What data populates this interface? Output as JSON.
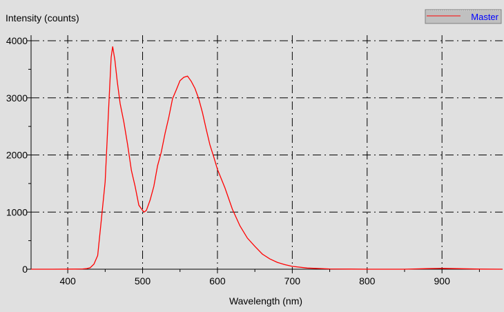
{
  "chart_data": {
    "type": "line",
    "title": "",
    "xlabel": "Wavelength (nm)",
    "ylabel": "Intensity (counts)",
    "xlim": [
      351,
      981
    ],
    "ylim": [
      0,
      4000
    ],
    "xticks": [
      400,
      500,
      600,
      700,
      800,
      900
    ],
    "yticks": [
      0,
      1000,
      2000,
      3000,
      4000
    ],
    "grid": true,
    "legend": {
      "placement": "top-right",
      "entries": [
        "Master"
      ]
    },
    "series": [
      {
        "name": "Master",
        "color": "#ff0000",
        "x": [
          351,
          380,
          410,
          420,
          425,
          430,
          435,
          440,
          445,
          450,
          455,
          458,
          460,
          463,
          466,
          470,
          475,
          480,
          485,
          490,
          495,
          500,
          502,
          505,
          510,
          515,
          520,
          525,
          530,
          535,
          540,
          545,
          550,
          555,
          560,
          565,
          570,
          575,
          580,
          585,
          590,
          595,
          600,
          610,
          620,
          630,
          640,
          650,
          660,
          670,
          680,
          690,
          700,
          720,
          750,
          800,
          850,
          880,
          900,
          920,
          950,
          981
        ],
        "y": [
          0,
          0,
          2,
          5,
          10,
          25,
          90,
          240,
          880,
          1530,
          2900,
          3710,
          3900,
          3660,
          3300,
          2900,
          2575,
          2175,
          1730,
          1450,
          1120,
          1030,
          1000,
          1030,
          1210,
          1450,
          1810,
          2050,
          2380,
          2660,
          2985,
          3140,
          3300,
          3360,
          3380,
          3290,
          3165,
          2985,
          2740,
          2450,
          2175,
          1970,
          1750,
          1425,
          1050,
          760,
          545,
          400,
          265,
          180,
          120,
          80,
          50,
          20,
          5,
          0,
          0,
          10,
          15,
          10,
          3,
          0
        ]
      }
    ]
  }
}
